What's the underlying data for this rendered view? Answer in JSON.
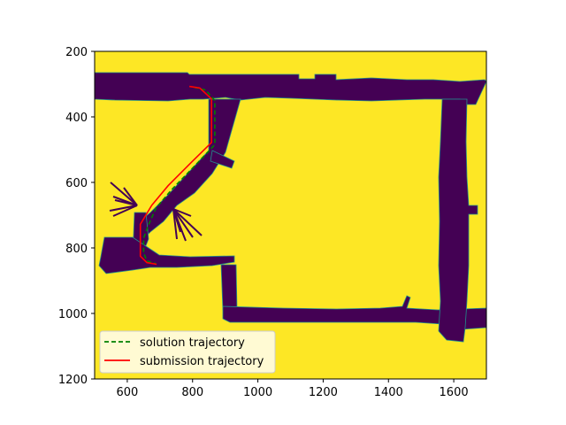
{
  "chart_data": {
    "type": "line",
    "title": "",
    "xlabel": "",
    "ylabel": "",
    "xlim": [
      500,
      1700
    ],
    "ylim": [
      1200,
      200
    ],
    "y_inverted": true,
    "grid": false,
    "legend_position": "lower-left",
    "xticks": [
      600,
      800,
      1000,
      1200,
      1400,
      1600
    ],
    "yticks": [
      200,
      400,
      600,
      800,
      1000,
      1200
    ],
    "background_colors": {
      "free": "#440154",
      "occupied": "#fde725",
      "edge": "#21918c"
    },
    "series": [
      {
        "name": "solution trajectory",
        "style": "dashed",
        "color": "#008000",
        "x": [
          805,
          840,
          868,
          868,
          808,
          738,
          688,
          665,
          650,
          650,
          660,
          688
        ],
        "y": [
          310,
          318,
          350,
          485,
          548,
          620,
          678,
          730,
          770,
          815,
          840,
          848
        ]
      },
      {
        "name": "submission trajectory",
        "style": "solid",
        "color": "#ff0000",
        "x": [
          790,
          822,
          858,
          858,
          795,
          725,
          675,
          640,
          640,
          660,
          690
        ],
        "y": [
          307,
          312,
          345,
          478,
          540,
          610,
          670,
          728,
          825,
          845,
          850
        ]
      }
    ]
  }
}
